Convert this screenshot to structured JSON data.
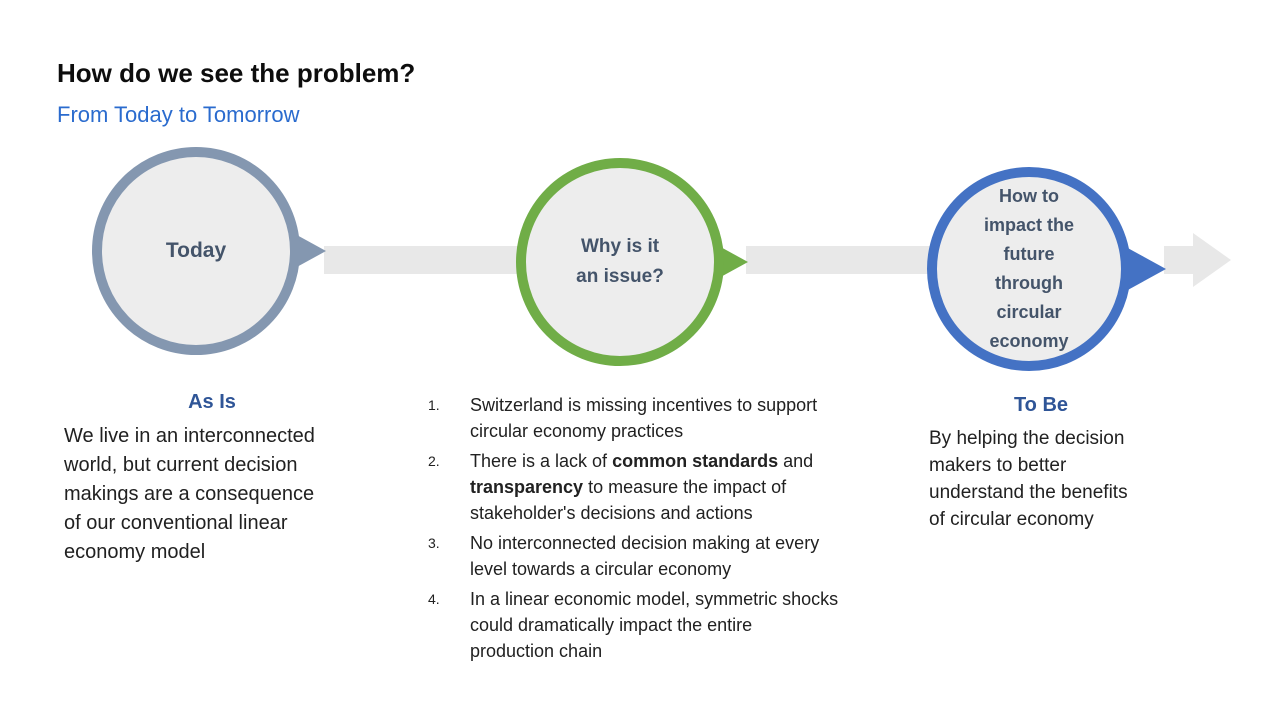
{
  "colors": {
    "title-black": "#0d0d0d",
    "subtitle-blue": "#2a6bce",
    "heading-blue": "#2f5597",
    "circle-text": "#44546a",
    "body-text": "#212121",
    "ring-today": "#8497b0",
    "ring-issue": "#70ad47",
    "ring-future": "#4472c4",
    "circle-fill": "#ededed",
    "band-gray": "#e8e8e8"
  },
  "slide": {
    "title": "How do we see the problem?",
    "subtitle": "From Today to Tomorrow"
  },
  "timeline": {
    "steps": [
      {
        "label": "Today"
      },
      {
        "label": "Why is it\nan issue?"
      },
      {
        "label": "How to\nimpact the\nfuture\nthrough\ncircular\neconomy"
      }
    ]
  },
  "columns": {
    "as_is": {
      "heading": "As Is",
      "body": "We live in an interconnected\nworld, but current decision\nmakings are a consequence\nof our conventional linear\neconomy model"
    },
    "issues": {
      "items": [
        {
          "number": "1.",
          "segments": [
            {
              "text": "Switzerland is missing incentives to support\ncircular economy practices",
              "bold": false
            }
          ]
        },
        {
          "number": "2.",
          "segments": [
            {
              "text": "There is a lack of ",
              "bold": false
            },
            {
              "text": "common standards",
              "bold": true
            },
            {
              "text": " and\n",
              "bold": false
            },
            {
              "text": "transparency",
              "bold": true
            },
            {
              "text": " to measure the impact of\nstakeholder's decisions and actions",
              "bold": false
            }
          ]
        },
        {
          "number": "3.",
          "segments": [
            {
              "text": "No interconnected decision making at every\nlevel towards a circular economy",
              "bold": false
            }
          ]
        },
        {
          "number": "4.",
          "segments": [
            {
              "text": "In a linear economic model, symmetric shocks\ncould dramatically impact the entire\nproduction chain",
              "bold": false
            }
          ]
        }
      ]
    },
    "to_be": {
      "heading": "To Be",
      "body": "By helping the decision\nmakers to better\nunderstand the benefits\nof circular economy"
    }
  }
}
